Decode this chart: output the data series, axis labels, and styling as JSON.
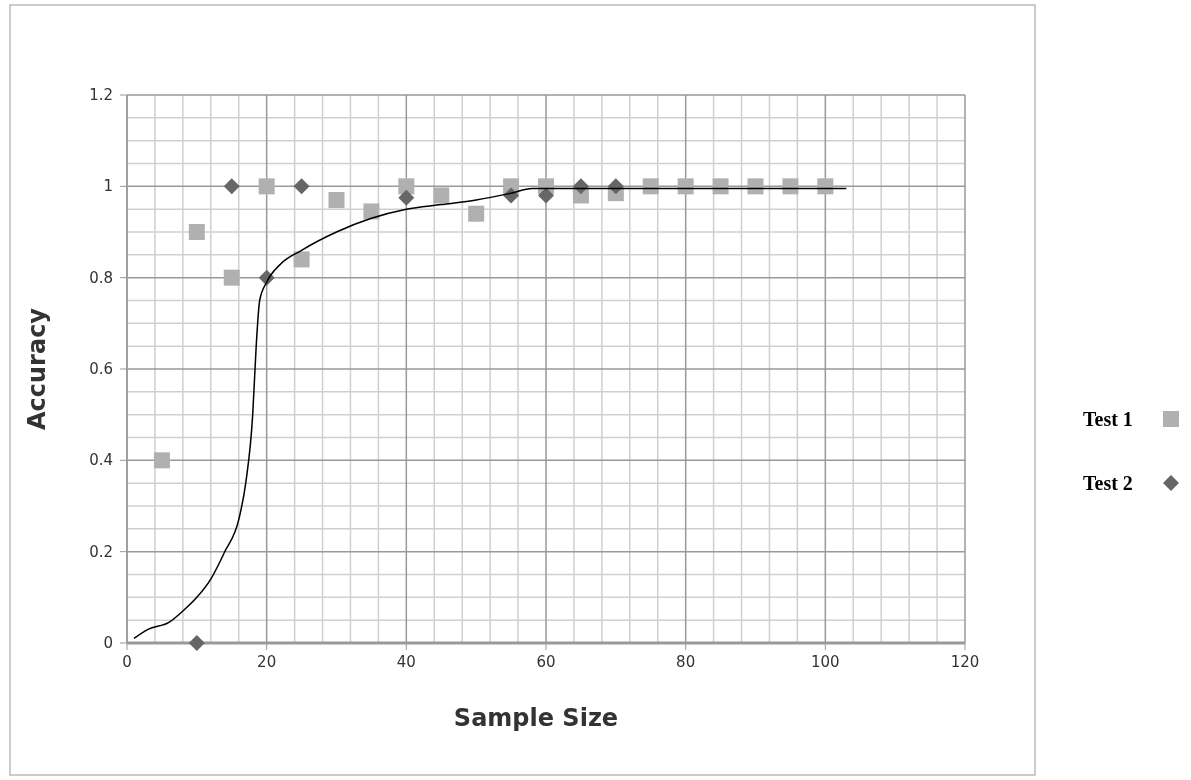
{
  "chart_data": {
    "type": "scatter",
    "xlabel": "Sample Size",
    "ylabel": "Accuracy",
    "xlim": [
      0,
      120
    ],
    "xticks": [
      0,
      20,
      40,
      60,
      80,
      100,
      120
    ],
    "ylim": [
      0,
      1.2
    ],
    "yticks": [
      0,
      0.2,
      0.4,
      0.6,
      0.8,
      {
        "value": 1,
        "label": "1"
      },
      1.2
    ],
    "grid": true,
    "legend": "right",
    "series": [
      {
        "name": "Test 1",
        "color": "#b0b0b0",
        "marker": "square",
        "x": [
          5,
          10,
          15,
          20,
          25,
          30,
          35,
          40,
          45,
          50,
          55,
          60,
          65,
          70,
          75,
          80,
          85,
          90,
          95,
          100
        ],
        "values": [
          0.4,
          0.9,
          0.8,
          1.0,
          0.84,
          0.97,
          0.945,
          1.0,
          0.98,
          0.94,
          1.0,
          1.0,
          0.98,
          0.985,
          1.0,
          1.0,
          1.0,
          1.0,
          1.0,
          1.0
        ]
      },
      {
        "name": "Test 2",
        "color": "#666666",
        "marker": "diamond",
        "x": [
          10,
          15,
          20,
          25,
          40,
          55,
          60,
          65,
          70
        ],
        "values": [
          0,
          1.0,
          0.8,
          1.0,
          0.975,
          0.98,
          0.98,
          1.0,
          1.0
        ]
      },
      {
        "type": "line",
        "color": "#000000",
        "marker": "none",
        "x": [
          1,
          3,
          6,
          8,
          10,
          12,
          14,
          16,
          17,
          18,
          18.5,
          19,
          20,
          22,
          25,
          30,
          35,
          40,
          45,
          50,
          55,
          58,
          60,
          103
        ],
        "values": [
          0.01,
          0.03,
          0.045,
          0.07,
          0.1,
          0.14,
          0.2,
          0.27,
          0.35,
          0.5,
          0.65,
          0.75,
          0.79,
          0.83,
          0.86,
          0.9,
          0.93,
          0.95,
          0.96,
          0.97,
          0.985,
          0.995,
          0.995,
          0.995
        ]
      }
    ]
  }
}
